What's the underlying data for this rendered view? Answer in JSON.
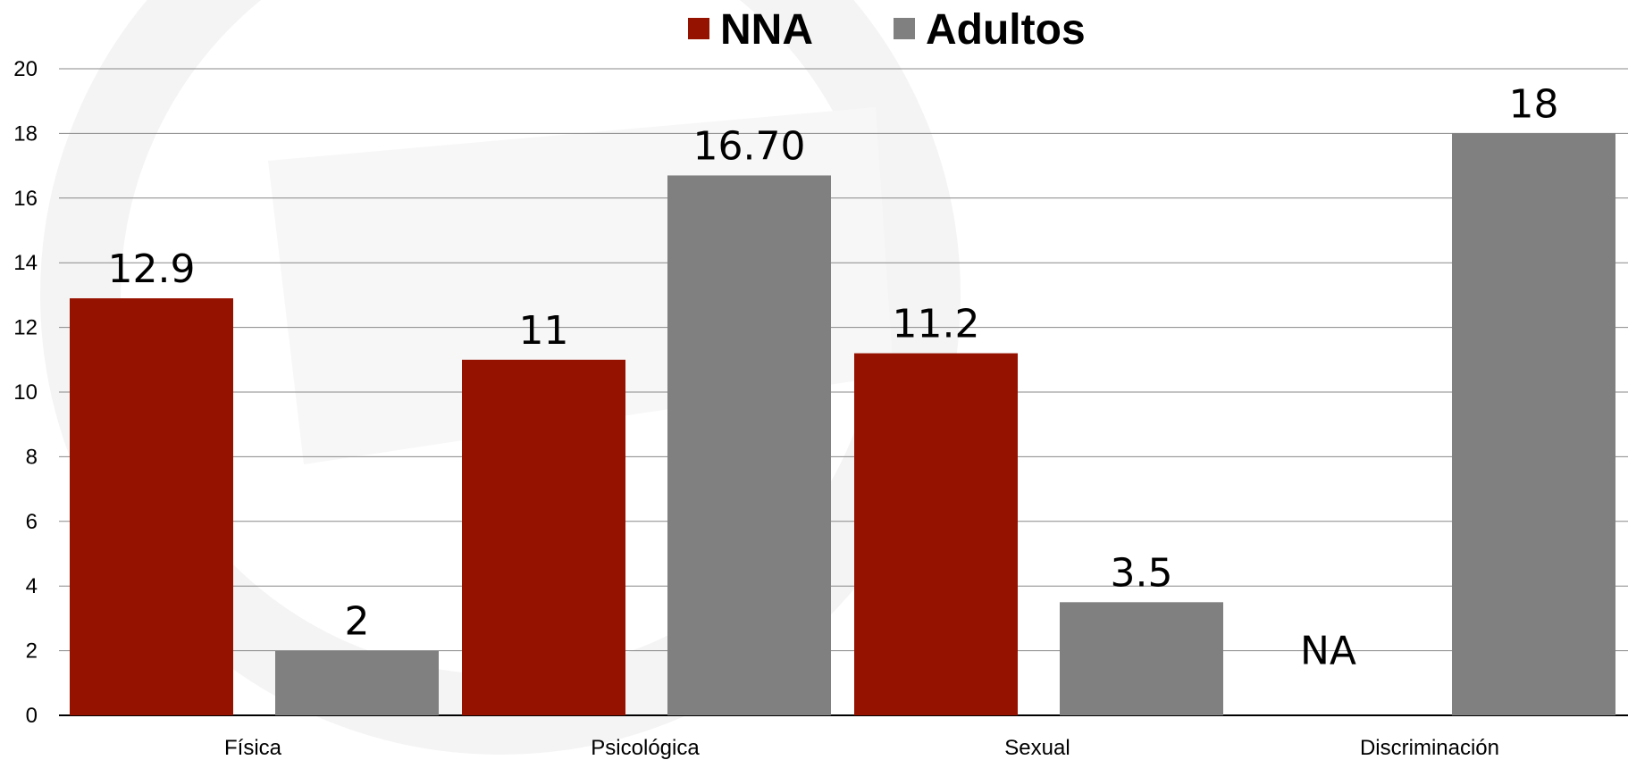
{
  "chart_data": {
    "type": "bar",
    "title": "",
    "xlabel": "",
    "ylabel": "",
    "categories": [
      "Física",
      "Psicológica",
      "Sexual",
      "Discriminación"
    ],
    "series": [
      {
        "name": "NNA",
        "color": "#961200",
        "values": [
          12.9,
          11,
          11.2,
          null
        ],
        "labels": [
          "12.9",
          "11",
          "11.2",
          "NA"
        ]
      },
      {
        "name": "Adultos",
        "color": "#808080",
        "values": [
          2,
          16.7,
          3.5,
          18
        ],
        "labels": [
          "2",
          "16.70",
          "3.5",
          "18"
        ]
      }
    ],
    "ylim": [
      0,
      20
    ],
    "yticks": [
      0,
      2,
      4,
      6,
      8,
      10,
      12,
      14,
      16,
      18,
      20
    ],
    "grid": true,
    "legend_position": "top-center"
  }
}
